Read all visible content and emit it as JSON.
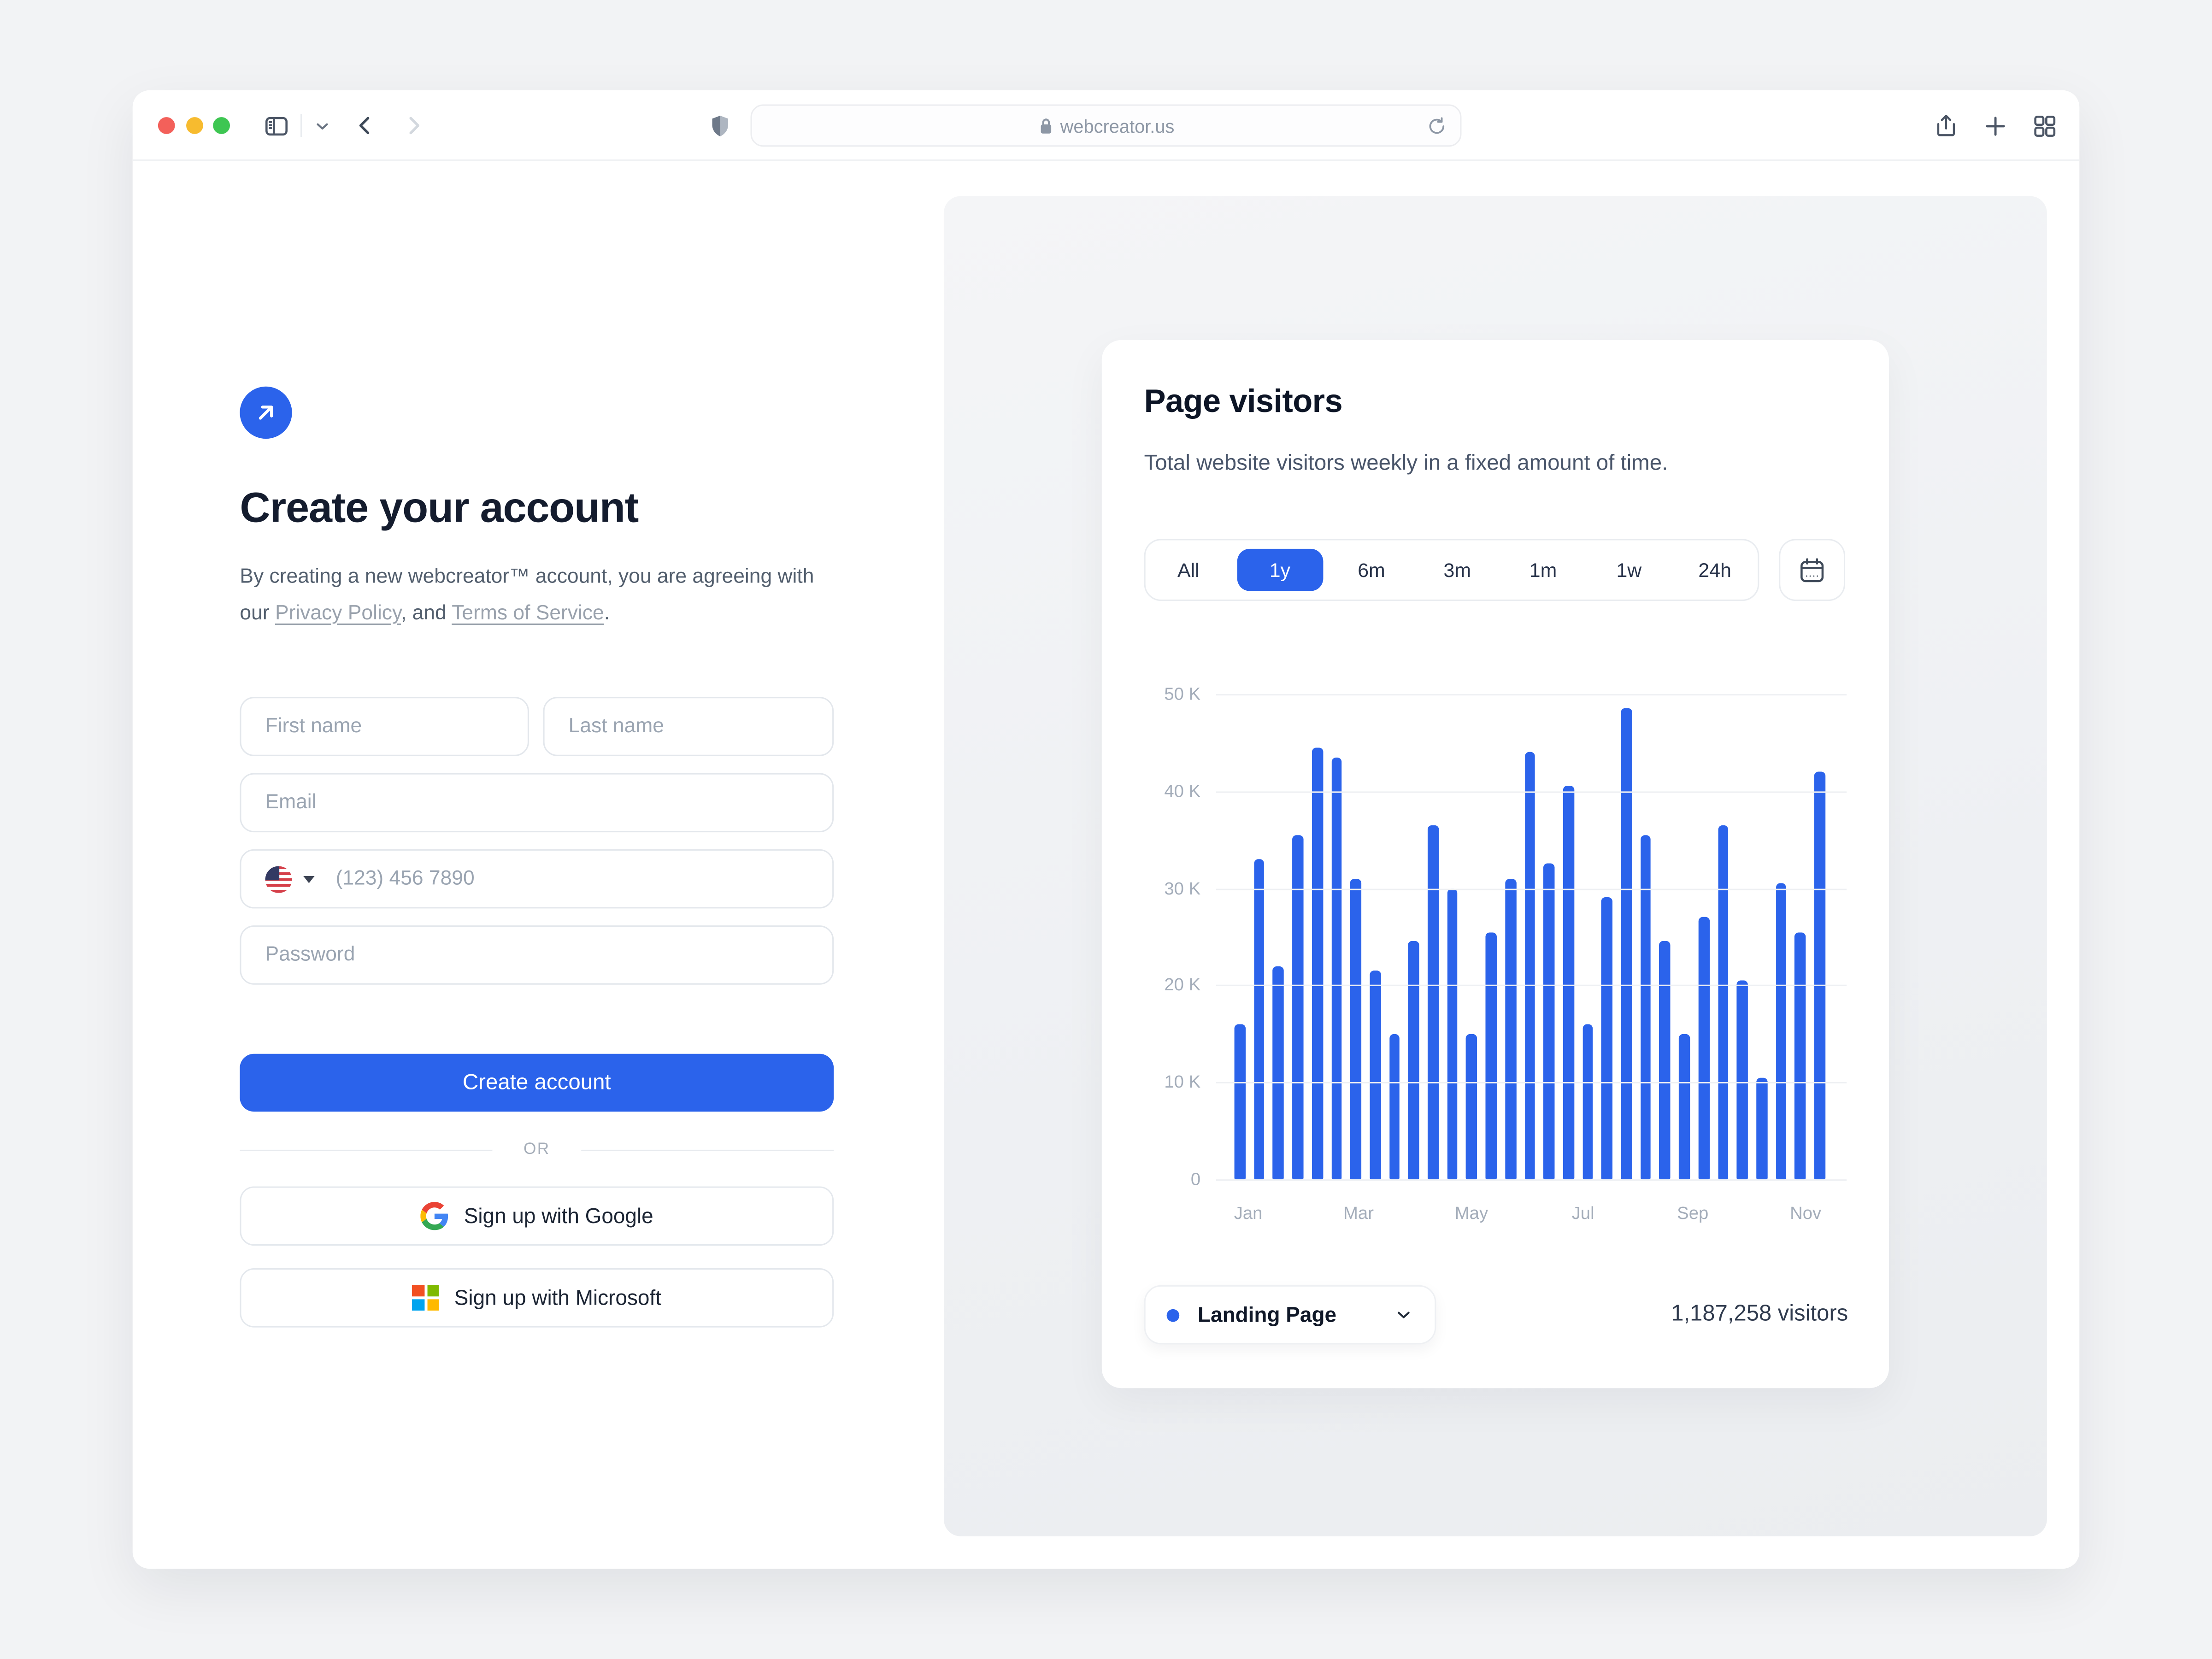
{
  "accent": "#2B63EB",
  "browser": {
    "url": "webcreator.us"
  },
  "signup": {
    "heading": "Create your account",
    "agreement": {
      "before": "By creating a new webcreator™ account, you are agreeing with our ",
      "privacy_link": "Privacy Policy",
      "between": ", and ",
      "terms_link": "Terms of Service",
      "after": "."
    },
    "fields": {
      "first_name_placeholder": "First name",
      "last_name_placeholder": "Last name",
      "email_placeholder": "Email",
      "phone_placeholder": "(123) 456 7890",
      "password_placeholder": "Password"
    },
    "create_button": "Create account",
    "divider": "OR",
    "google_button": "Sign up with Google",
    "microsoft_button": "Sign up with Microsoft"
  },
  "analytics": {
    "title": "Page visitors",
    "subtitle": "Total website visitors weekly in a fixed amount of time.",
    "ranges": [
      "All",
      "1y",
      "6m",
      "3m",
      "1m",
      "1w",
      "24h"
    ],
    "selected_range": "1y",
    "series_label": "Landing Page",
    "visitors_total": "1,187,258 visitors"
  },
  "chart_data": {
    "type": "bar",
    "title": "Page visitors",
    "unit": "visitors per week",
    "values": [
      16000,
      33000,
      22000,
      35500,
      44500,
      43500,
      31000,
      21500,
      15000,
      24500,
      36500,
      30000,
      15000,
      25500,
      31000,
      44000,
      32500,
      40500,
      16000,
      29000,
      48500,
      35500,
      24500,
      15000,
      27000,
      36500,
      20500,
      10500,
      30500,
      25500,
      42000
    ],
    "y_ticks": [
      "50 K",
      "40 K",
      "30 K",
      "20 K",
      "10 K",
      "0"
    ],
    "y_max": 50000,
    "month_labels": [
      {
        "label": "Jan",
        "pos": 5.1
      },
      {
        "label": "Mar",
        "pos": 22.6
      },
      {
        "label": "May",
        "pos": 40.5
      },
      {
        "label": "Jul",
        "pos": 58.2
      },
      {
        "label": "Sep",
        "pos": 75.6
      },
      {
        "label": "Nov",
        "pos": 93.5
      }
    ],
    "bar_color": "#2B63EB",
    "grid": true,
    "legend_position": "none"
  }
}
